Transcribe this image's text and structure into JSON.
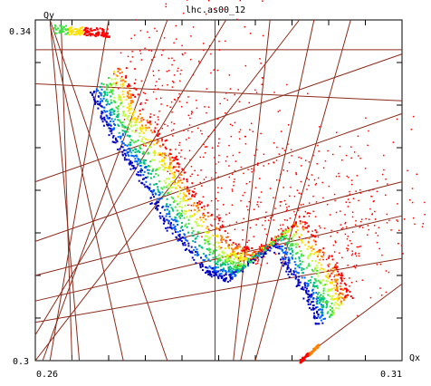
{
  "chart_data": {
    "type": "scatter",
    "title": "lhc.as00_12",
    "xlabel": "Qx",
    "ylabel": "Qy",
    "xlim": [
      0.26,
      0.31
    ],
    "ylim": [
      0.3,
      0.34
    ],
    "x_tick_labels": [
      "0.26",
      "0.31"
    ],
    "y_tick_labels": [
      "0.34",
      "0.3"
    ],
    "grid": false,
    "colormap": [
      "#0000c0",
      "#0060ff",
      "#00c080",
      "#40e040",
      "#c0ff40",
      "#ffe000",
      "#ff8000",
      "#ff0000"
    ],
    "resonance_line_color": "#8b2a1a",
    "footprint": {
      "main_band": [
        {
          "x": 0.2675,
          "y": 0.3315
        },
        {
          "x": 0.27,
          "y": 0.3265
        },
        {
          "x": 0.274,
          "y": 0.3215
        },
        {
          "x": 0.2775,
          "y": 0.316
        },
        {
          "x": 0.283,
          "y": 0.3105
        },
        {
          "x": 0.286,
          "y": 0.3095
        },
        {
          "x": 0.292,
          "y": 0.3135
        },
        {
          "x": 0.2965,
          "y": 0.308
        },
        {
          "x": 0.2985,
          "y": 0.304
        }
      ],
      "upper_arm": {
        "x_range": [
          0.2625,
          0.27
        ],
        "y_range": [
          0.3385,
          0.3395
        ]
      },
      "lower_cluster": {
        "x_range": [
          0.296,
          0.2985
        ],
        "y_range": [
          0.3,
          0.3018
        ]
      }
    },
    "resonance_lines": [
      {
        "x1": 0.26,
        "y1": 0.3365,
        "x2": 0.31,
        "y2": 0.3365
      },
      {
        "x1": 0.26,
        "y1": 0.3325,
        "x2": 0.31,
        "y2": 0.3305
      },
      {
        "x1": 0.26,
        "y1": 0.321,
        "x2": 0.31,
        "y2": 0.336
      },
      {
        "x1": 0.26,
        "y1": 0.314,
        "x2": 0.31,
        "y2": 0.329
      },
      {
        "x1": 0.26,
        "y1": 0.31,
        "x2": 0.31,
        "y2": 0.321
      },
      {
        "x1": 0.26,
        "y1": 0.307,
        "x2": 0.31,
        "y2": 0.317
      },
      {
        "x1": 0.26,
        "y1": 0.3045,
        "x2": 0.31,
        "y2": 0.312
      },
      {
        "x1": 0.2635,
        "y1": 0.34,
        "x2": 0.265,
        "y2": 0.3
      },
      {
        "x1": 0.262,
        "y1": 0.34,
        "x2": 0.278,
        "y2": 0.3
      },
      {
        "x1": 0.262,
        "y1": 0.34,
        "x2": 0.266,
        "y2": 0.3
      },
      {
        "x1": 0.27,
        "y1": 0.34,
        "x2": 0.262,
        "y2": 0.3
      },
      {
        "x1": 0.278,
        "y1": 0.34,
        "x2": 0.261,
        "y2": 0.3
      },
      {
        "x1": 0.286,
        "y1": 0.34,
        "x2": 0.26,
        "y2": 0.303
      },
      {
        "x1": 0.2845,
        "y1": 0.34,
        "x2": 0.2845,
        "y2": 0.3
      },
      {
        "x1": 0.292,
        "y1": 0.34,
        "x2": 0.287,
        "y2": 0.3
      },
      {
        "x1": 0.298,
        "y1": 0.34,
        "x2": 0.288,
        "y2": 0.3
      },
      {
        "x1": 0.303,
        "y1": 0.34,
        "x2": 0.29,
        "y2": 0.3
      },
      {
        "x1": 0.262,
        "y1": 0.3395,
        "x2": 0.272,
        "y2": 0.3
      },
      {
        "x1": 0.296,
        "y1": 0.3,
        "x2": 0.31,
        "y2": 0.309
      },
      {
        "x1": 0.26,
        "y1": 0.3,
        "x2": 0.296,
        "y2": 0.34
      }
    ]
  }
}
